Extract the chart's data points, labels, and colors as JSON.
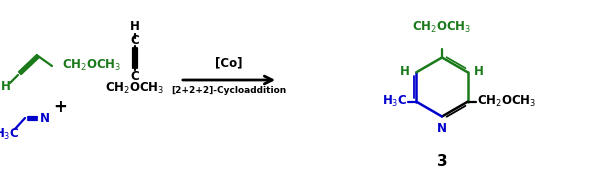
{
  "bg_color": "#ffffff",
  "green": "#1a7a1a",
  "blue": "#0000cc",
  "black": "#000000",
  "fig_w": 6.0,
  "fig_h": 1.75,
  "dpi": 100,
  "xlim": [
    0,
    6.0
  ],
  "ylim": [
    0,
    1.75
  ]
}
